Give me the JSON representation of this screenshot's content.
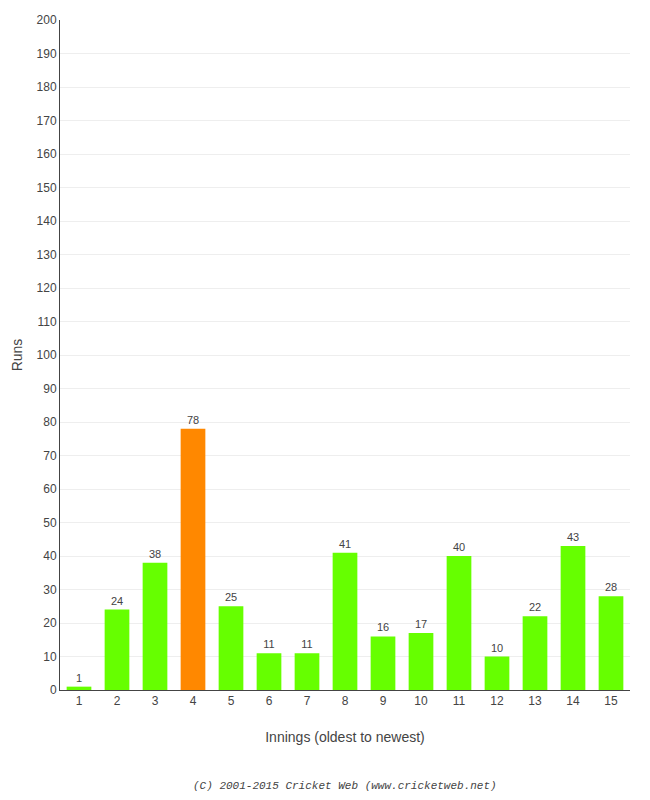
{
  "chart_data": {
    "type": "bar",
    "categories": [
      "1",
      "2",
      "3",
      "4",
      "5",
      "6",
      "7",
      "8",
      "9",
      "10",
      "11",
      "12",
      "13",
      "14",
      "15"
    ],
    "values": [
      1,
      24,
      38,
      78,
      25,
      11,
      11,
      41,
      16,
      17,
      40,
      10,
      22,
      43,
      28
    ],
    "colors": [
      "#66ff00",
      "#66ff00",
      "#66ff00",
      "#ff8800",
      "#66ff00",
      "#66ff00",
      "#66ff00",
      "#66ff00",
      "#66ff00",
      "#66ff00",
      "#66ff00",
      "#66ff00",
      "#66ff00",
      "#66ff00",
      "#66ff00"
    ],
    "xlabel": "Innings (oldest to newest)",
    "ylabel": "Runs",
    "ylim": [
      0,
      200
    ],
    "yticks": [
      0,
      10,
      20,
      30,
      40,
      50,
      60,
      70,
      80,
      90,
      100,
      110,
      120,
      130,
      140,
      150,
      160,
      170,
      180,
      190,
      200
    ],
    "grid": true,
    "data_labels": true,
    "annotations": [
      "(C) 2001-2015 Cricket Web (www.cricketweb.net)"
    ]
  }
}
